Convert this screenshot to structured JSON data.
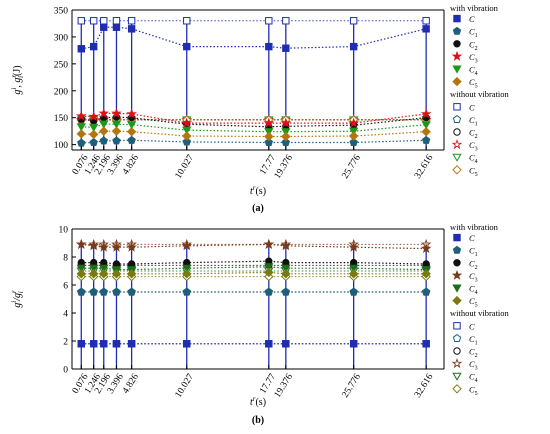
{
  "chart_data": [
    {
      "panel_label": "(a)",
      "type": "line",
      "xlabel_main": "t",
      "xlabel_sup": "r",
      "xlabel_unit": "(s)",
      "ylabel_main": "g",
      "ylabel_sup": "i",
      "ylabel_sep": ", g",
      "ylabel_sup2": "r",
      "ylabel_sub2": "i",
      "ylabel_unit": "(J)",
      "ylim": [
        90,
        350
      ],
      "yticks": [
        100,
        150,
        200,
        250,
        300,
        350
      ],
      "x": [
        0.076,
        1.246,
        2.196,
        3.396,
        4.826,
        10.027,
        17.77,
        19.376,
        25.776,
        32.616
      ],
      "x_tick_labels": [
        "0.076",
        "1.246",
        "2.196",
        "3.396",
        "4.826",
        "10.027",
        "17.77",
        "19.376",
        "25.776",
        "32.616"
      ],
      "legend": {
        "group1": "with vibration",
        "group2": "without vibration",
        "entries": [
          {
            "base": "C",
            "sub": ""
          },
          {
            "base": "C",
            "sub": "1"
          },
          {
            "base": "C",
            "sub": "2"
          },
          {
            "base": "C",
            "sub": "3"
          },
          {
            "base": "C",
            "sub": "4"
          },
          {
            "base": "C",
            "sub": "5"
          }
        ]
      },
      "series_with": [
        {
          "values": [
            278,
            282,
            318,
            318,
            315,
            282,
            282,
            279,
            282,
            315
          ]
        },
        {
          "values": [
            103,
            104,
            107,
            107,
            108,
            105,
            104,
            104,
            104,
            108
          ]
        },
        {
          "values": [
            147,
            144,
            150,
            151,
            150,
            138,
            133,
            134,
            136,
            150
          ]
        },
        {
          "values": [
            153,
            152,
            158,
            158,
            157,
            140,
            140,
            140,
            140,
            157
          ]
        },
        {
          "values": [
            133,
            132,
            138,
            138,
            137,
            127,
            124,
            124,
            125,
            137
          ]
        },
        {
          "values": [
            120,
            119,
            125,
            125,
            124,
            116,
            115,
            115,
            116,
            124
          ]
        }
      ],
      "series_without": [
        {
          "values": [
            330,
            330,
            330,
            330,
            330,
            330,
            330,
            330,
            330,
            330
          ]
        },
        {
          "values": [
            146,
            146,
            146,
            146,
            146,
            146,
            146,
            146,
            146,
            146
          ]
        },
        {
          "values": [
            146,
            146,
            146,
            146,
            146,
            146,
            146,
            146,
            146,
            146
          ]
        },
        {
          "values": [
            146,
            146,
            146,
            146,
            146,
            146,
            146,
            146,
            146,
            146
          ]
        },
        {
          "values": [
            146,
            146,
            146,
            146,
            146,
            146,
            146,
            146,
            146,
            146
          ]
        },
        {
          "values": [
            146,
            146,
            146,
            146,
            146,
            146,
            146,
            146,
            146,
            146
          ]
        }
      ],
      "colors": [
        "#1f2db3",
        "#1f5f7a",
        "#111111",
        "#e0101a",
        "#1a9a1a",
        "#b5750e"
      ]
    },
    {
      "panel_label": "(b)",
      "type": "line",
      "xlabel_main": "t",
      "xlabel_sup": "r",
      "xlabel_unit": "(s)",
      "ylabel_main": "g",
      "ylabel_sup": "i",
      "ylabel_sep": "/g",
      "ylabel_sup2": "r",
      "ylabel_sub2": "i",
      "ylabel_unit": "",
      "ylim": [
        0,
        10
      ],
      "yticks": [
        0,
        2,
        4,
        6,
        8,
        10
      ],
      "x": [
        0.076,
        1.246,
        2.196,
        3.396,
        4.826,
        10.027,
        17.77,
        19.376,
        25.776,
        32.616
      ],
      "x_tick_labels": [
        "0.076",
        "1.246",
        "2.196",
        "3.396",
        "4.826",
        "10.027",
        "17.77",
        "19.376",
        "25.776",
        "32.616"
      ],
      "legend": {
        "group1": "with vibration",
        "group2": "without vibration",
        "entries": [
          {
            "base": "C",
            "sub": ""
          },
          {
            "base": "C",
            "sub": "1"
          },
          {
            "base": "C",
            "sub": "2"
          },
          {
            "base": "C",
            "sub": "3"
          },
          {
            "base": "C",
            "sub": "4"
          },
          {
            "base": "C",
            "sub": "5"
          }
        ]
      },
      "series_with": [
        {
          "values": [
            1.8,
            1.8,
            1.8,
            1.8,
            1.8,
            1.8,
            1.8,
            1.8,
            1.8,
            1.8
          ]
        },
        {
          "values": [
            5.5,
            5.5,
            5.5,
            5.5,
            5.5,
            5.5,
            5.5,
            5.5,
            5.5,
            5.5
          ]
        },
        {
          "values": [
            7.6,
            7.6,
            7.6,
            7.5,
            7.5,
            7.6,
            7.7,
            7.6,
            7.6,
            7.5
          ]
        },
        {
          "values": [
            8.9,
            8.8,
            8.7,
            8.7,
            8.7,
            8.8,
            8.9,
            8.8,
            8.7,
            8.6
          ]
        },
        {
          "values": [
            7.2,
            7.2,
            7.2,
            7.1,
            7.1,
            7.2,
            7.3,
            7.2,
            7.2,
            7.1
          ]
        },
        {
          "values": [
            6.8,
            6.8,
            6.8,
            6.8,
            6.8,
            6.8,
            6.9,
            6.8,
            6.8,
            6.8
          ]
        }
      ],
      "series_without": [
        {
          "values": [
            1.8,
            1.8,
            1.8,
            1.8,
            1.8,
            1.8,
            1.8,
            1.8,
            1.8,
            1.8
          ]
        },
        {
          "values": [
            5.5,
            5.5,
            5.5,
            5.5,
            5.5,
            5.5,
            5.5,
            5.5,
            5.5,
            5.5
          ]
        },
        {
          "values": [
            7.4,
            7.4,
            7.4,
            7.4,
            7.4,
            7.4,
            7.4,
            7.4,
            7.4,
            7.4
          ]
        },
        {
          "values": [
            8.9,
            8.9,
            8.9,
            8.9,
            8.9,
            8.9,
            8.9,
            8.9,
            8.9,
            8.9
          ]
        },
        {
          "values": [
            7.0,
            7.0,
            7.0,
            7.0,
            7.0,
            7.0,
            7.0,
            7.0,
            7.0,
            7.0
          ]
        },
        {
          "values": [
            6.6,
            6.6,
            6.6,
            6.6,
            6.6,
            6.6,
            6.6,
            6.6,
            6.6,
            6.6
          ]
        }
      ],
      "colors": [
        "#1f2db3",
        "#1f5f7a",
        "#111111",
        "#7a3a1a",
        "#1a6f1a",
        "#7a7a10"
      ]
    }
  ]
}
